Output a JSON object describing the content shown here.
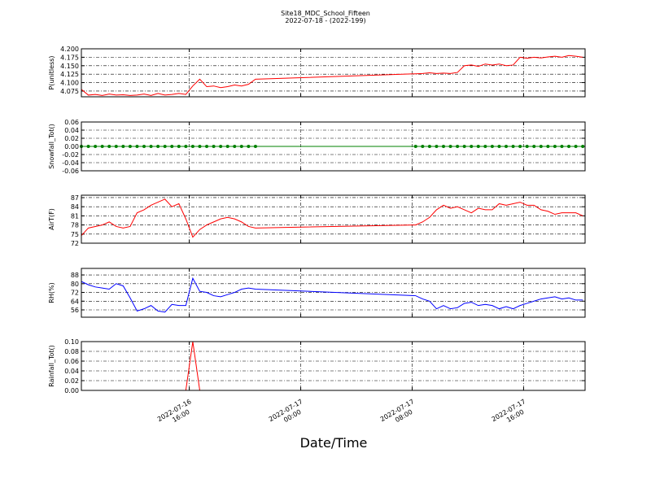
{
  "title": "Site18_MDC_School_Fifteen",
  "subtitle": "2022-07-18 - (2022-199)",
  "x_label": "Date/Time",
  "x": [
    "2022-07-16 08:15",
    "2022-07-16 08:45",
    "2022-07-16 09:15",
    "2022-07-16 09:45",
    "2022-07-16 10:15",
    "2022-07-16 10:45",
    "2022-07-16 11:15",
    "2022-07-16 11:45",
    "2022-07-16 12:15",
    "2022-07-16 12:45",
    "2022-07-16 13:15",
    "2022-07-16 13:45",
    "2022-07-16 14:15",
    "2022-07-16 14:45",
    "2022-07-16 15:15",
    "2022-07-16 15:45",
    "2022-07-16 16:15",
    "2022-07-16 16:45",
    "2022-07-16 17:15",
    "2022-07-16 17:45",
    "2022-07-16 18:15",
    "2022-07-16 18:45",
    "2022-07-16 19:15",
    "2022-07-16 19:45",
    "2022-07-16 20:15",
    "2022-07-16 20:45",
    "2022-07-17 08:15",
    "2022-07-17 08:45",
    "2022-07-17 09:15",
    "2022-07-17 09:45",
    "2022-07-17 10:15",
    "2022-07-17 10:45",
    "2022-07-17 11:15",
    "2022-07-17 11:45",
    "2022-07-17 12:15",
    "2022-07-17 12:45",
    "2022-07-17 13:15",
    "2022-07-17 13:45",
    "2022-07-17 14:15",
    "2022-07-17 14:45",
    "2022-07-17 15:15",
    "2022-07-17 15:45",
    "2022-07-17 16:15",
    "2022-07-17 16:45",
    "2022-07-17 17:15",
    "2022-07-17 17:45",
    "2022-07-17 18:15",
    "2022-07-17 18:45",
    "2022-07-17 19:15",
    "2022-07-17 19:45",
    "2022-07-17 20:15"
  ],
  "xlim": [
    "2022-07-16 08:15",
    "2022-07-17 20:25"
  ],
  "xticks": [
    "2022-07-16 16:00",
    "2022-07-17 00:00",
    "2022-07-17 08:00",
    "2022-07-17 16:00"
  ],
  "grid": true,
  "chart_data": [
    {
      "type": "line",
      "y_label": "P(unitless)",
      "ylim": [
        4.058,
        4.2
      ],
      "yticks": [
        4.075,
        {
          "value": 4.1,
          "label": "4.100"
        },
        4.125,
        {
          "value": 4.15,
          "label": "4.150"
        },
        4.175,
        {
          "value": 4.2,
          "label": "4.200"
        }
      ],
      "series": [
        {
          "color": "#ff0000",
          "marker": false,
          "values": [
            4.08,
            4.063,
            4.065,
            4.062,
            4.066,
            4.063,
            4.064,
            4.062,
            4.063,
            4.066,
            4.062,
            4.068,
            4.063,
            4.065,
            4.068,
            4.065,
            4.09,
            4.11,
            4.088,
            4.09,
            4.085,
            4.088,
            4.093,
            4.09,
            4.095,
            4.11,
            4.126,
            4.127,
            4.129,
            4.127,
            4.128,
            4.127,
            4.13,
            4.15,
            4.152,
            4.148,
            4.155,
            4.152,
            4.155,
            4.15,
            4.152,
            4.175,
            4.172,
            4.175,
            4.173,
            4.176,
            4.178,
            4.175,
            4.18,
            4.178,
            4.175
          ]
        }
      ]
    },
    {
      "type": "line",
      "y_label": "Snowfall_Tot()",
      "ylim": [
        -0.06,
        0.06
      ],
      "yticks": [
        {
          "value": -0.06,
          "label": "-0.06"
        },
        {
          "value": -0.04,
          "label": "-0.04"
        },
        {
          "value": -0.02,
          "label": "-0.02"
        },
        {
          "value": 0,
          "label": "0.00"
        },
        {
          "value": 0.02,
          "label": "0.02"
        },
        {
          "value": 0.04,
          "label": "0.04"
        },
        {
          "value": 0.06,
          "label": "0.06"
        }
      ],
      "series": [
        {
          "color": "#008000",
          "marker": true,
          "values": [
            0,
            0,
            0,
            0,
            0,
            0,
            0,
            0,
            0,
            0,
            0,
            0,
            0,
            0,
            0,
            0,
            0,
            0,
            0,
            0,
            0,
            0,
            0,
            0,
            0,
            0,
            0,
            0,
            0,
            0,
            0,
            0,
            0,
            0,
            0,
            0,
            0,
            0,
            0,
            0,
            0,
            0,
            0,
            0,
            0,
            0,
            0,
            0,
            0,
            0,
            0
          ]
        }
      ]
    },
    {
      "type": "line",
      "y_label": "AirT(F)",
      "ylim": [
        72,
        87.8
      ],
      "yticks": [
        72,
        75,
        78,
        81,
        84,
        87
      ],
      "series": [
        {
          "color": "#ff0000",
          "marker": false,
          "values": [
            74.5,
            77,
            77.5,
            78,
            79,
            77.5,
            77,
            77.5,
            82,
            83,
            84.5,
            85.5,
            86.5,
            84,
            85,
            80,
            74,
            76.5,
            78,
            79,
            80,
            80.5,
            80,
            79,
            77.5,
            77,
            78,
            79,
            80.5,
            83,
            84.5,
            83.5,
            84,
            83,
            82,
            83.5,
            83,
            83,
            85,
            84.5,
            85,
            85.5,
            84.5,
            84.5,
            83,
            82.5,
            81.5,
            82,
            82,
            82,
            81
          ]
        }
      ]
    },
    {
      "type": "line",
      "y_label": "RH(%)",
      "ylim": [
        49.3,
        94
      ],
      "yticks": [
        56,
        64,
        72,
        80,
        88
      ],
      "series": [
        {
          "color": "#0000ff",
          "marker": false,
          "values": [
            82,
            79,
            77,
            76,
            75,
            80,
            78,
            67,
            55,
            57,
            60,
            55,
            54,
            61,
            60,
            60,
            85,
            73,
            72,
            69,
            68,
            70,
            72,
            75,
            76,
            75,
            69,
            66,
            64,
            57,
            60,
            57,
            58,
            62,
            63,
            60,
            61,
            60,
            57,
            59,
            57,
            60,
            62,
            64,
            66,
            67,
            68,
            66,
            67,
            65,
            65
          ]
        }
      ]
    },
    {
      "type": "line",
      "y_label": "Rainfall_Tot()",
      "ylim": [
        0,
        0.1
      ],
      "yticks": [
        {
          "value": 0,
          "label": "0.00"
        },
        {
          "value": 0.02,
          "label": "0.02"
        },
        {
          "value": 0.04,
          "label": "0.04"
        },
        {
          "value": 0.06,
          "label": "0.06"
        },
        {
          "value": 0.08,
          "label": "0.08"
        },
        {
          "value": 0.1,
          "label": "0.10"
        }
      ],
      "series": [
        {
          "color": "#ff0000",
          "marker": false,
          "values": [
            0,
            0,
            0,
            0,
            0,
            0,
            0,
            0,
            0,
            0,
            0,
            0,
            0,
            0,
            0,
            0,
            0.1,
            0,
            0,
            0,
            0,
            0,
            0,
            0,
            0,
            0,
            0,
            0,
            0,
            0,
            0,
            0,
            0,
            0,
            0,
            0,
            0,
            0,
            0,
            0,
            0,
            0,
            0,
            0,
            0,
            0,
            0,
            0,
            0,
            0,
            0
          ]
        }
      ]
    }
  ]
}
